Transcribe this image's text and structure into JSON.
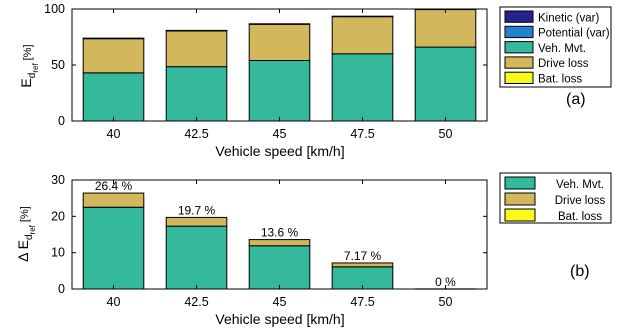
{
  "chart_data": [
    {
      "type": "bar",
      "stacked": true,
      "panel_label": "(a)",
      "categories": [
        "40",
        "42.5",
        "45",
        "47.5",
        "50"
      ],
      "xlabel": "Vehicle speed [km/h]",
      "ylabel": {
        "main": "E",
        "sub1": "d",
        "sub2": "ref",
        "unit": "[%]"
      },
      "ylim": [
        0,
        100
      ],
      "yticks": [
        "0",
        "50",
        "100"
      ],
      "series": [
        {
          "name": "Kinetic (var)",
          "color": "#24238c",
          "values": [
            0.5,
            0.4,
            0.3,
            0.3,
            0.2
          ]
        },
        {
          "name": "Potential (var)",
          "color": "#1f83d3",
          "values": [
            0,
            0,
            0,
            0,
            0
          ]
        },
        {
          "name": "Veh. Mvt.",
          "color": "#35b99c",
          "values": [
            43,
            48.5,
            54,
            60,
            66
          ]
        },
        {
          "name": "Drive loss",
          "color": "#d3b75c",
          "values": [
            30.5,
            32,
            32.5,
            33.3,
            33.8
          ]
        },
        {
          "name": "Bat. loss",
          "color": "#f9f91a",
          "values": [
            0,
            0,
            0,
            0,
            0
          ]
        }
      ],
      "stack_order": [
        "Veh. Mvt.",
        "Drive loss",
        "Bat. loss",
        "Potential (var)",
        "Kinetic (var)"
      ],
      "legend_position": "right"
    },
    {
      "type": "bar",
      "stacked": true,
      "panel_label": "(b)",
      "categories": [
        "40",
        "42.5",
        "45",
        "47.5",
        "50"
      ],
      "xlabel": "Vehicle speed [km/h]",
      "ylabel": {
        "main": "Δ E",
        "sub1": "d",
        "sub2": "ref",
        "unit": "[%]"
      },
      "ylim": [
        0,
        30
      ],
      "yticks": [
        "0",
        "10",
        "20",
        "30"
      ],
      "series": [
        {
          "name": "Veh. Mvt.",
          "color": "#35b99c",
          "values": [
            22.5,
            17.3,
            11.9,
            6.1,
            0
          ]
        },
        {
          "name": "Drive loss",
          "color": "#d3b75c",
          "values": [
            3.9,
            2.4,
            1.7,
            1.07,
            0
          ]
        },
        {
          "name": "Bat. loss",
          "color": "#f9f91a",
          "values": [
            0,
            0,
            0,
            0,
            0
          ]
        }
      ],
      "data_labels": [
        "26.4 %",
        "19.7 %",
        "13.6 %",
        "7.17 %",
        "0 %"
      ],
      "legend_position": "right"
    }
  ]
}
